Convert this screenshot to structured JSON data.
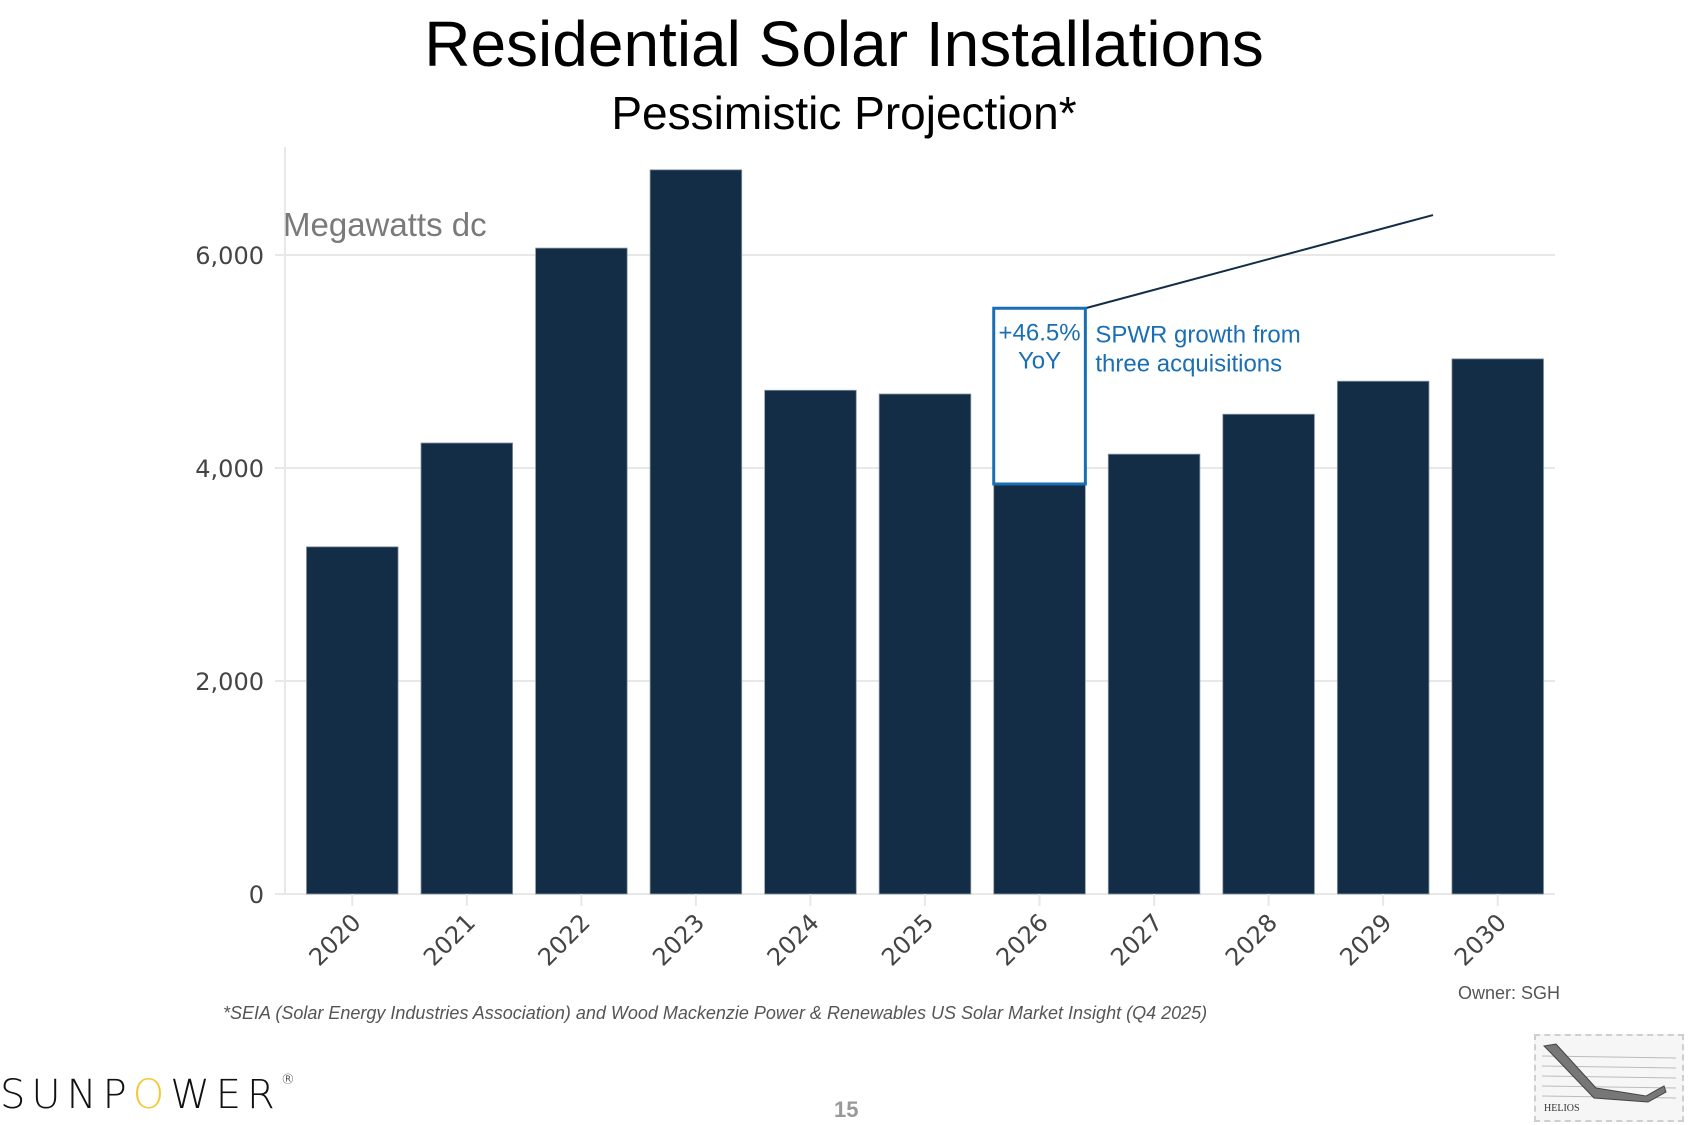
{
  "slide": {
    "title": "Residential Solar Installations",
    "subtitle": "Pessimistic Projection*",
    "footnote": "*SEIA (Solar Energy Industries Association) and Wood Mackenzie Power & Renewables US Solar Market Insight (Q4 2025)",
    "owner": "Owner: SGH",
    "page_number": "15",
    "logo": {
      "pre": "SUNP",
      "o": "O",
      "post": "WER",
      "reg": "®"
    },
    "stamp_label": "HELIOS",
    "colors": {
      "bar": "#132d46",
      "accent": "#1a6fb4",
      "logo_o": "#f3c93b",
      "grid": "#e8e8e8"
    }
  },
  "chart_data": {
    "type": "bar",
    "title": "Residential Solar Installations",
    "subtitle": "Pessimistic Projection*",
    "unit_label": "Megawatts dc",
    "xlabel": "",
    "ylabel": "Megawatts dc",
    "ylim": [
      0,
      7000
    ],
    "yticks": [
      0,
      2000,
      4000,
      6000
    ],
    "ytick_labels": [
      "0",
      "2,000",
      "4,000",
      "6,000"
    ],
    "grid": true,
    "categories": [
      "2020",
      "2021",
      "2022",
      "2023",
      "2024",
      "2025",
      "2026",
      "2027",
      "2028",
      "2029",
      "2030"
    ],
    "values": [
      3260,
      4235,
      6065,
      6800,
      4730,
      4695,
      3850,
      4130,
      4505,
      4815,
      5025
    ],
    "annotation": {
      "category": "2026",
      "box_top_value": 5500,
      "box_label_line1": "+46.5%",
      "box_label_line2": "YoY",
      "text_line1": "SPWR growth from",
      "text_line2": "three acquisitions",
      "trend_line_end": {
        "category": "2029",
        "value": 6375
      }
    }
  }
}
